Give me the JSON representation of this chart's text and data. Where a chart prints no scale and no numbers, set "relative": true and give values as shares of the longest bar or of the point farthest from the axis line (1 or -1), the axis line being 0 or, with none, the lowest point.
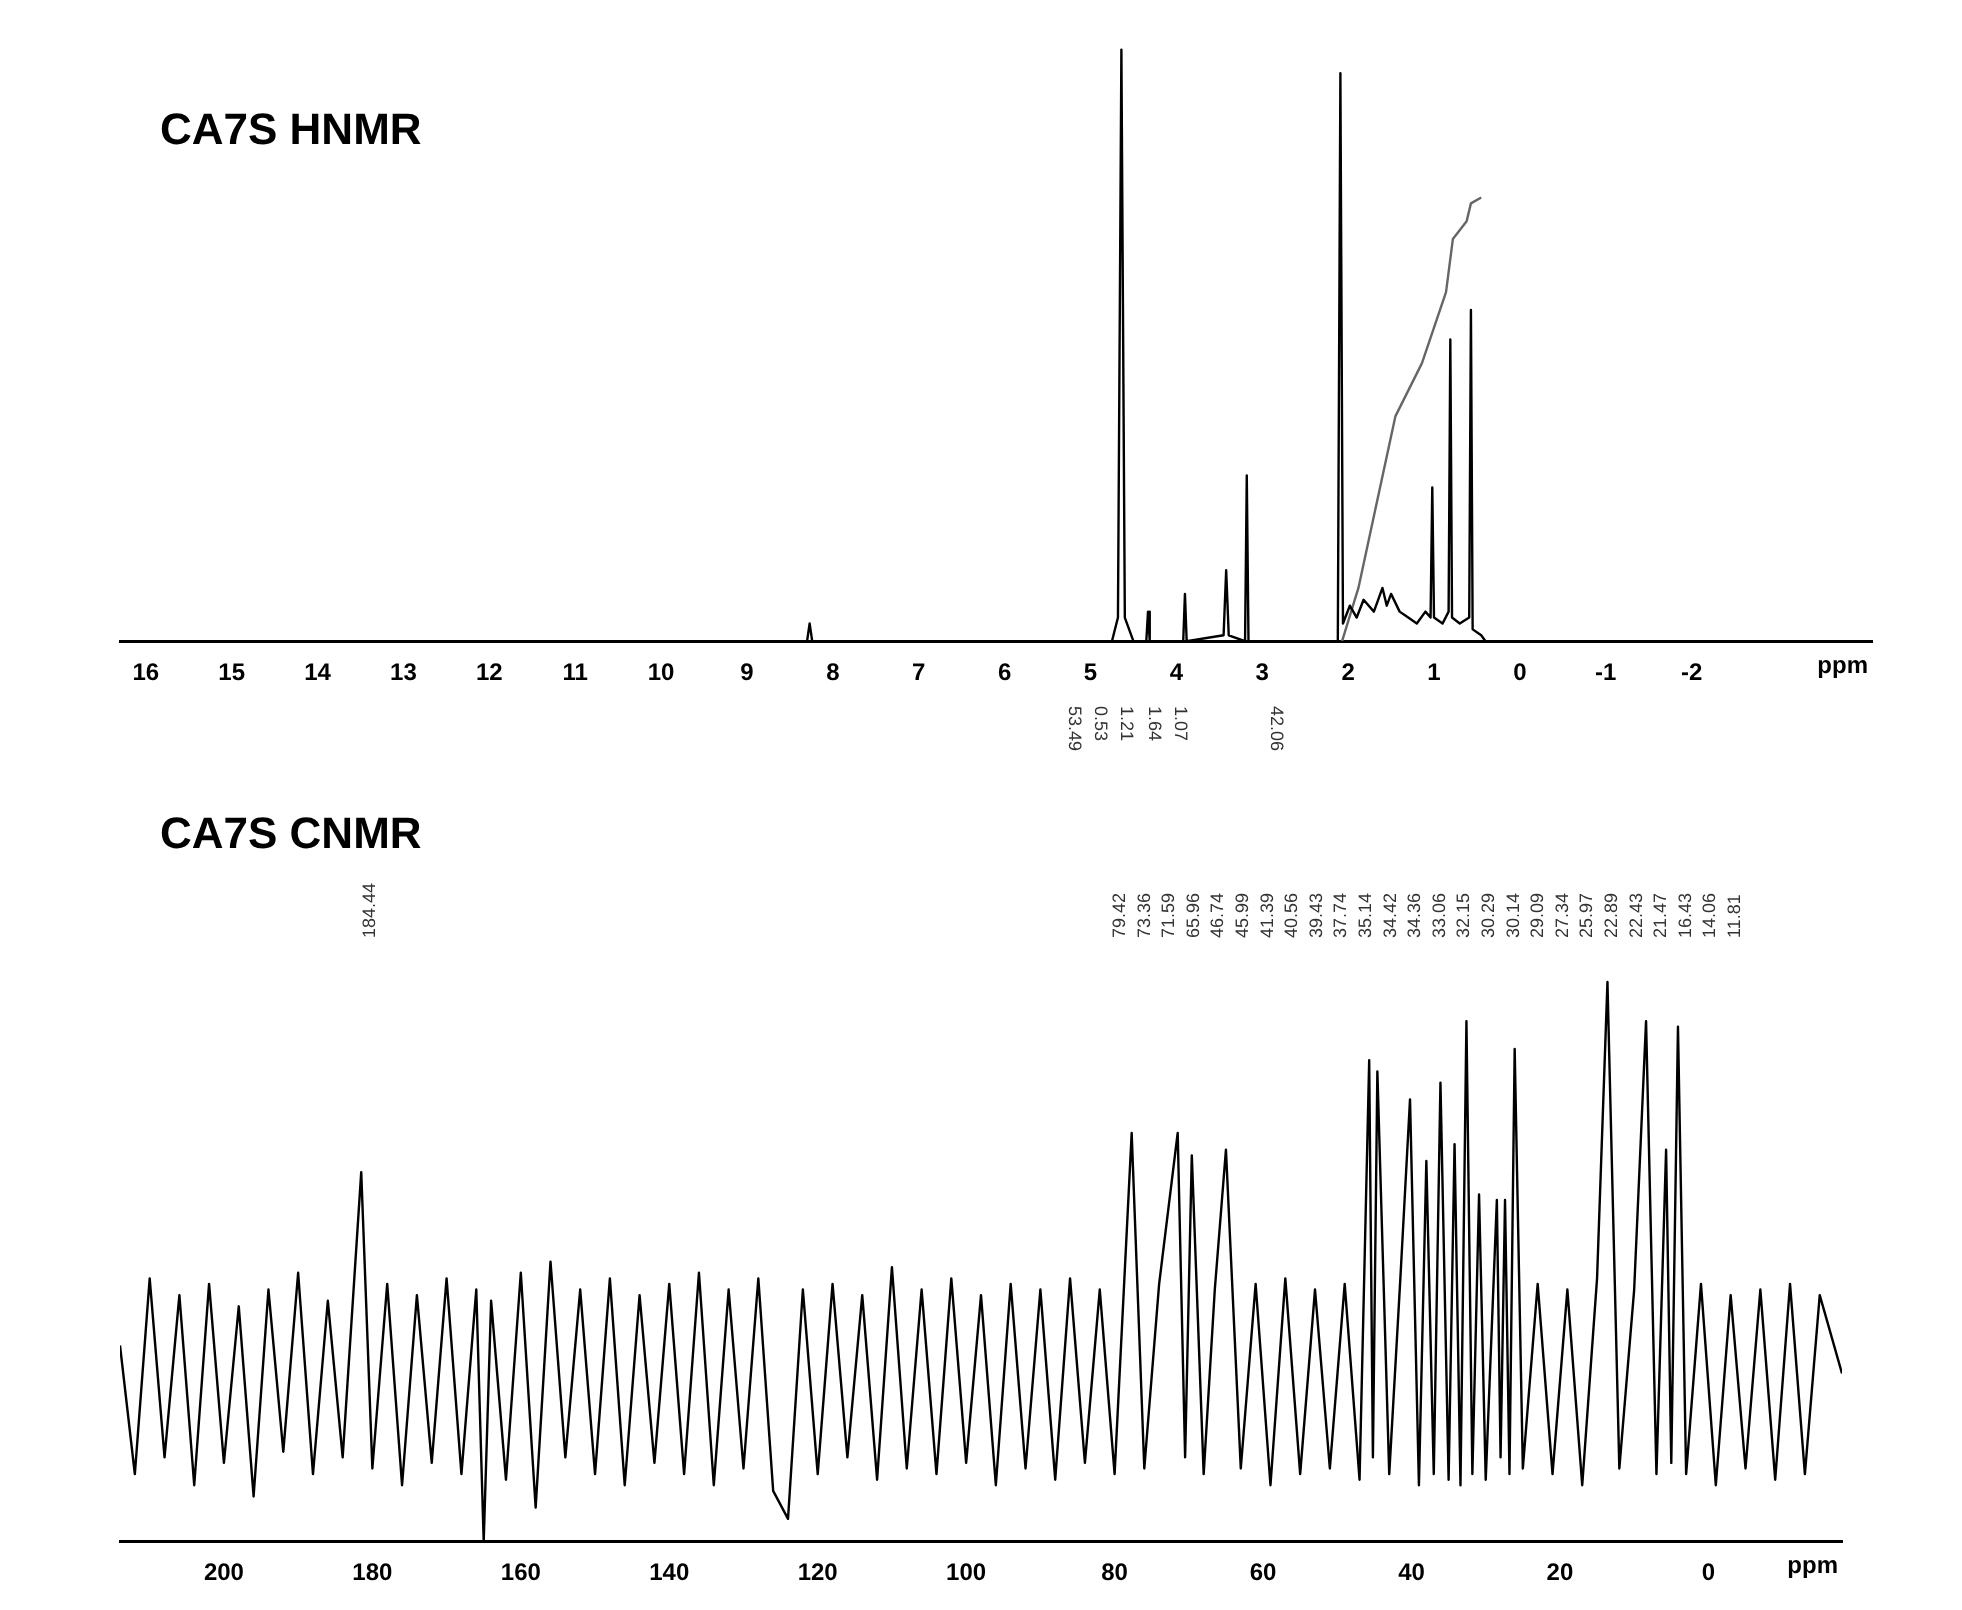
{
  "chart_data": [
    {
      "type": "line",
      "title": "CA7S HNMR",
      "xlabel": "ppm",
      "relative": true,
      "grid": false,
      "legend": false,
      "marker": "none",
      "line_style": "solid",
      "xlim": [
        16.3,
        -4.1
      ],
      "xticks": [
        16,
        15,
        14,
        13,
        12,
        11,
        10,
        9,
        8,
        7,
        6,
        5,
        4,
        3,
        2,
        1,
        0,
        -1,
        -2
      ],
      "series": [
        {
          "color": "#000000",
          "x": [
            16.3,
            8.3,
            8.27,
            8.24,
            4.75,
            4.68,
            4.64,
            4.6,
            4.5,
            4.35,
            4.33,
            4.31,
            3.92,
            3.9,
            3.88,
            3.45,
            3.42,
            3.39,
            3.2,
            3.18,
            3.16,
            2.12,
            2.09,
            2.06,
            1.98,
            1.9,
            1.82,
            1.7,
            1.6,
            1.55,
            1.5,
            1.4,
            1.3,
            1.2,
            1.1,
            1.04,
            1.02,
            1.0,
            0.9,
            0.83,
            0.81,
            0.79,
            0.7,
            0.59,
            0.57,
            0.55,
            0.45,
            0.4,
            -4.1
          ],
          "values": [
            0,
            0,
            0.03,
            0,
            0,
            0.04,
            1.0,
            0.04,
            0,
            0,
            0.05,
            0,
            0,
            0.08,
            0,
            0.01,
            0.12,
            0.01,
            0,
            0.28,
            0,
            0,
            0.96,
            0.03,
            0.06,
            0.04,
            0.07,
            0.05,
            0.09,
            0.06,
            0.08,
            0.05,
            0.04,
            0.03,
            0.05,
            0.04,
            0.26,
            0.04,
            0.03,
            0.05,
            0.51,
            0.04,
            0.03,
            0.04,
            0.56,
            0.02,
            0.01,
            0,
            0
          ]
        },
        {
          "color": "#666666",
          "x": [
            2.07,
            1.88,
            1.45,
            1.14,
            0.86,
            0.78,
            0.62,
            0.57,
            0.45
          ],
          "values": [
            0,
            0.09,
            0.38,
            0.47,
            0.59,
            0.68,
            0.71,
            0.74,
            0.75
          ]
        }
      ],
      "annotations": [
        "53.49",
        "0.53",
        "1.21",
        "1.64",
        "1.07",
        "42.06"
      ]
    },
    {
      "type": "line",
      "title": "CA7S CNMR",
      "xlabel": "ppm",
      "relative": true,
      "grid": false,
      "legend": false,
      "marker": "none",
      "line_style": "solid",
      "xlim": [
        214,
        -18
      ],
      "xticks": [
        200,
        180,
        160,
        140,
        120,
        100,
        80,
        60,
        40,
        20,
        0
      ],
      "series": [
        {
          "color": "#000000",
          "x": [
            214,
            212,
            210,
            208,
            206,
            204,
            202,
            200,
            198,
            196,
            194,
            192,
            190,
            188,
            186,
            184,
            181.5,
            180,
            178,
            176,
            174,
            172,
            170,
            168,
            166,
            165,
            164,
            162,
            160,
            158,
            156,
            154,
            152,
            150,
            148,
            146,
            144,
            142,
            140,
            138,
            136,
            134,
            132,
            130,
            128,
            126,
            124,
            122,
            120,
            118,
            116,
            114,
            112,
            110,
            108,
            106,
            104,
            102,
            100,
            98,
            96,
            94,
            92,
            90,
            88,
            86,
            84,
            82,
            80,
            77.7,
            76,
            74,
            71.5,
            70.5,
            69.6,
            68,
            66.5,
            65,
            63,
            61,
            59,
            57,
            55,
            53,
            51,
            49,
            47,
            45.7,
            45.2,
            44.6,
            43,
            41.5,
            40.2,
            39,
            38,
            37,
            36.1,
            35,
            34.2,
            33.4,
            32.6,
            31.8,
            30.9,
            30,
            28.5,
            28,
            27.4,
            26.8,
            26.1,
            25,
            23,
            21,
            19,
            17,
            15,
            13.6,
            12,
            10,
            8.4,
            7,
            5.7,
            5,
            4.1,
            3,
            1,
            -1,
            -3,
            -5,
            -7,
            -9,
            -11,
            -13,
            -15,
            -18
          ],
          "values": [
            0.35,
            0.12,
            0.47,
            0.15,
            0.44,
            0.1,
            0.46,
            0.14,
            0.42,
            0.08,
            0.45,
            0.16,
            0.48,
            0.12,
            0.43,
            0.15,
            0.66,
            0.13,
            0.46,
            0.1,
            0.44,
            0.14,
            0.47,
            0.12,
            0.45,
            0.0,
            0.43,
            0.11,
            0.48,
            0.06,
            0.5,
            0.15,
            0.45,
            0.12,
            0.47,
            0.1,
            0.44,
            0.14,
            0.46,
            0.12,
            0.48,
            0.1,
            0.45,
            0.13,
            0.47,
            0.09,
            0.04,
            0.45,
            0.12,
            0.46,
            0.15,
            0.44,
            0.11,
            0.49,
            0.13,
            0.45,
            0.12,
            0.47,
            0.14,
            0.44,
            0.1,
            0.46,
            0.13,
            0.45,
            0.11,
            0.47,
            0.14,
            0.45,
            0.12,
            0.73,
            0.13,
            0.46,
            0.73,
            0.15,
            0.69,
            0.12,
            0.45,
            0.7,
            0.13,
            0.46,
            0.1,
            0.47,
            0.12,
            0.45,
            0.13,
            0.46,
            0.11,
            0.86,
            0.15,
            0.84,
            0.12,
            0.47,
            0.79,
            0.1,
            0.68,
            0.12,
            0.82,
            0.11,
            0.71,
            0.1,
            0.93,
            0.12,
            0.62,
            0.11,
            0.61,
            0.15,
            0.61,
            0.12,
            0.88,
            0.13,
            0.46,
            0.12,
            0.45,
            0.1,
            0.47,
            1.0,
            0.13,
            0.45,
            0.93,
            0.12,
            0.7,
            0.14,
            0.92,
            0.12,
            0.46,
            0.1,
            0.44,
            0.13,
            0.45,
            0.11,
            0.46,
            0.12,
            0.44,
            0.3
          ]
        }
      ],
      "annotations": [
        "184.44",
        "79.42",
        "73.36",
        "71.59",
        "65.96",
        "46.74",
        "45.99",
        "41.39",
        "40.56",
        "39.43",
        "37.74",
        "35.14",
        "34.42",
        "34.36",
        "33.06",
        "32.15",
        "30.29",
        "30.14",
        "29.09",
        "27.34",
        "25.97",
        "22.89",
        "22.43",
        "21.47",
        "16.43",
        "14.06",
        "11.81"
      ]
    }
  ]
}
